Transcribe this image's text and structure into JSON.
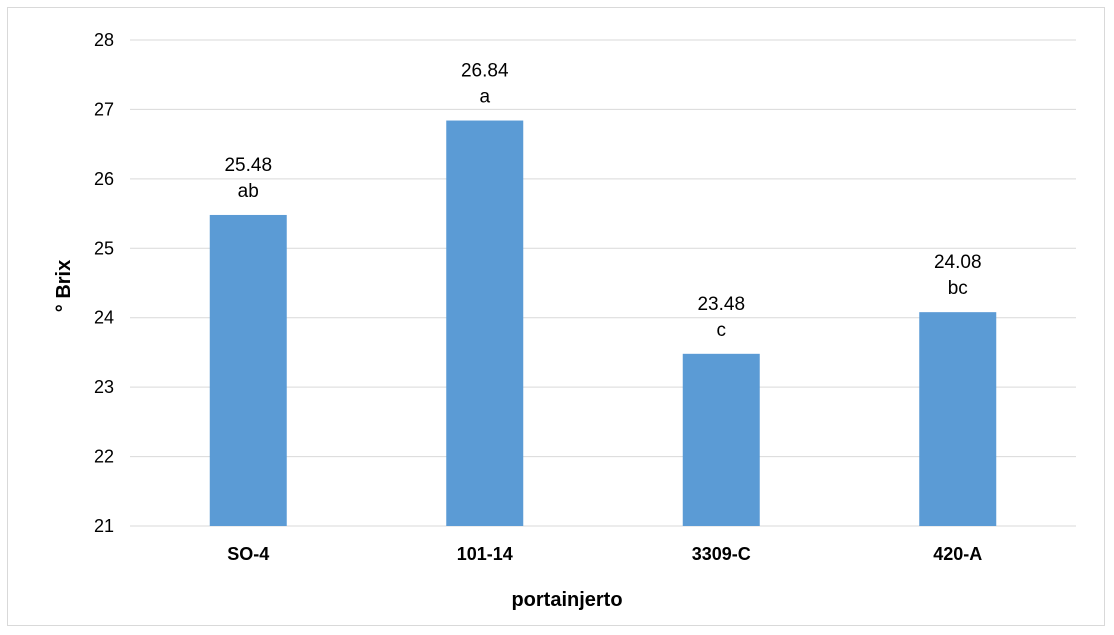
{
  "chart_data": {
    "type": "bar",
    "categories": [
      "SO-4",
      "101-14",
      "3309-C",
      "420-A"
    ],
    "values": [
      25.48,
      26.84,
      23.48,
      24.08
    ],
    "value_labels": [
      "25.48",
      "26.84",
      "23.48",
      "24.08"
    ],
    "group_letters": [
      "ab",
      "a",
      "c",
      "bc"
    ],
    "yticks": [
      "21",
      "22",
      "23",
      "24",
      "25",
      "26",
      "27",
      "28"
    ],
    "xlabel": "portainjerto",
    "ylabel": "° Brix",
    "ylim": [
      21,
      28
    ],
    "grid": true,
    "legend": "none",
    "bar_color": "#5b9bd5",
    "gridline_color": "#d9d9d9"
  }
}
